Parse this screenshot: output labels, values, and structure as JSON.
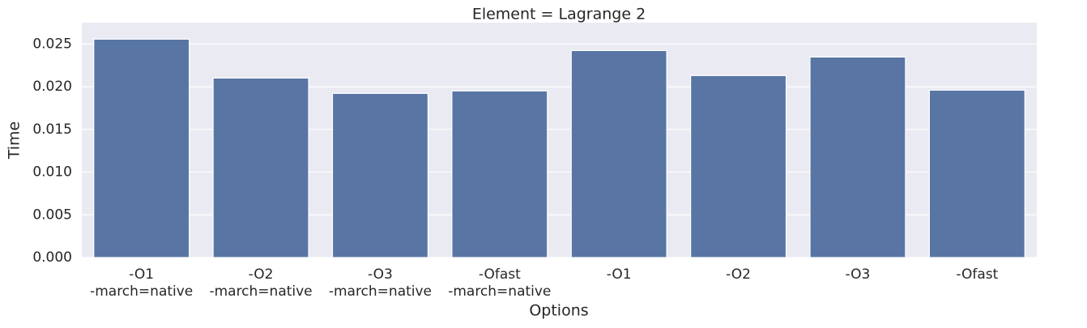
{
  "chart_data": {
    "type": "bar",
    "title": "Element = Lagrange 2",
    "x_label": "Options",
    "y_label": "Time",
    "categories": [
      "-O1\n-march=native",
      "-O2\n-march=native",
      "-O3\n-march=native",
      "-Ofast\n-march=native",
      "-O1",
      "-O2",
      "-O3",
      "-Ofast"
    ],
    "values": [
      0.02557,
      0.02102,
      0.01922,
      0.01951,
      0.02424,
      0.02131,
      0.02348,
      0.0196
    ],
    "color": "#5875a4",
    "ylim": [
      0,
      0.0275
    ],
    "yticks": [
      {
        "value": 0,
        "label": "0.000"
      },
      {
        "value": 0.005,
        "label": "0.005"
      },
      {
        "value": 0.01,
        "label": "0.010"
      },
      {
        "value": 0.015,
        "label": "0.015"
      },
      {
        "value": 0.02,
        "label": "0.020"
      },
      {
        "value": 0.025,
        "label": "0.025"
      }
    ],
    "grid": true
  }
}
